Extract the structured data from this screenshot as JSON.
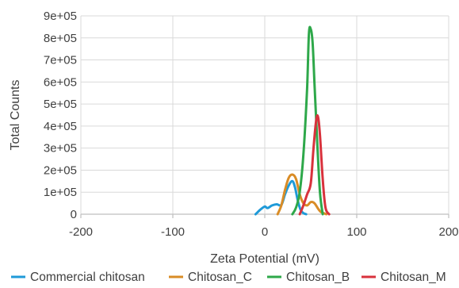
{
  "chart_data": {
    "type": "line",
    "xlabel": "Zeta Potential (mV)",
    "ylabel": "Total Counts",
    "xlim": [
      -200,
      200
    ],
    "ylim": [
      0,
      900000
    ],
    "x_ticks": [
      -200,
      -100,
      0,
      100,
      200
    ],
    "x_tick_labels": [
      "-200",
      "-100",
      "0",
      "100",
      "200"
    ],
    "y_ticks": [
      0,
      100000,
      200000,
      300000,
      400000,
      500000,
      600000,
      700000,
      800000,
      900000
    ],
    "y_tick_labels": [
      "0",
      "1e+05",
      "2e+05",
      "3e+05",
      "4e+05",
      "5e+05",
      "6e+05",
      "7e+05",
      "8e+05",
      "9e+05"
    ],
    "grid": true,
    "legend_position": "bottom",
    "series": [
      {
        "name": "Commercial chitosan",
        "color": "#1f9ad8",
        "x": [
          -10,
          -5,
          0,
          3,
          8,
          13,
          18,
          22,
          26,
          30,
          33,
          36,
          39,
          42,
          45
        ],
        "y": [
          0,
          20000,
          35000,
          28000,
          40000,
          45000,
          42000,
          90000,
          130000,
          150000,
          120000,
          60000,
          20000,
          5000,
          0
        ]
      },
      {
        "name": "Chitosan_C",
        "color": "#d98c26",
        "x": [
          14,
          18,
          22,
          26,
          30,
          34,
          38,
          42,
          46,
          50,
          54,
          58,
          61,
          64,
          67
        ],
        "y": [
          0,
          40000,
          110000,
          165000,
          180000,
          160000,
          90000,
          50000,
          40000,
          55000,
          50000,
          25000,
          10000,
          5000,
          0
        ]
      },
      {
        "name": "Chitosan_B",
        "color": "#2ea84a",
        "x": [
          30,
          34,
          38,
          42,
          46,
          48,
          50,
          52,
          54,
          57,
          60,
          63
        ],
        "y": [
          0,
          30000,
          100000,
          270000,
          570000,
          820000,
          840000,
          780000,
          600000,
          330000,
          100000,
          0
        ]
      },
      {
        "name": "Chitosan_M",
        "color": "#d8323c",
        "x": [
          38,
          42,
          46,
          50,
          53,
          56,
          58,
          60,
          63,
          66,
          70
        ],
        "y": [
          0,
          40000,
          90000,
          140000,
          300000,
          430000,
          440000,
          360000,
          160000,
          30000,
          0
        ]
      }
    ]
  }
}
